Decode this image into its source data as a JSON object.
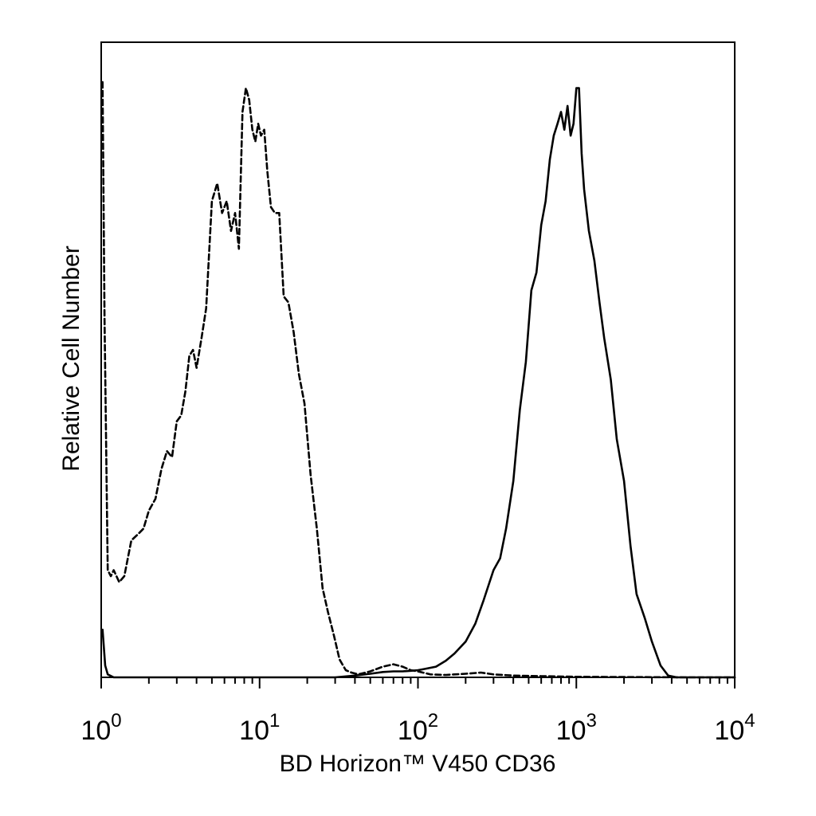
{
  "chart_data": {
    "type": "line",
    "title": "",
    "xlabel": "BD Horizon™ V450 CD36",
    "ylabel": "Relative Cell Number",
    "x_scale": "log",
    "xlim": [
      1,
      10000
    ],
    "ylim": [
      0,
      100
    ],
    "grid": false,
    "legend": "none",
    "x_ticks": [
      {
        "value": 1,
        "base": "10",
        "exp": "0"
      },
      {
        "value": 10,
        "base": "10",
        "exp": "1"
      },
      {
        "value": 100,
        "base": "10",
        "exp": "2"
      },
      {
        "value": 1000,
        "base": "10",
        "exp": "3"
      },
      {
        "value": 10000,
        "base": "10",
        "exp": "4"
      }
    ],
    "series": [
      {
        "style": "dashed",
        "color": "#000000",
        "x": [
          1.02,
          1.05,
          1.1,
          1.15,
          1.2,
          1.3,
          1.4,
          1.55,
          1.7,
          1.85,
          2.0,
          2.2,
          2.4,
          2.6,
          2.8,
          3.0,
          3.2,
          3.4,
          3.6,
          3.8,
          4.0,
          4.3,
          4.6,
          5.0,
          5.4,
          5.8,
          6.2,
          6.6,
          7.0,
          7.4,
          7.8,
          8.2,
          8.6,
          9.0,
          9.4,
          9.8,
          10.2,
          10.7,
          11.2,
          11.8,
          12.5,
          13.3,
          14.2,
          15.2,
          16.4,
          17.7,
          19.2,
          21.0,
          23.0,
          25.0,
          27.0,
          29.5,
          32.0,
          35.0,
          38.0,
          42.0,
          50.0,
          60.0,
          70.0,
          80.0,
          90.0,
          100.0,
          120.0,
          150.0,
          200.0,
          250.0,
          300.0,
          400.0,
          600.0,
          1000.0,
          2000.0,
          5000.0,
          10000.0
        ],
        "y": [
          100,
          60,
          18,
          17,
          18,
          16,
          17,
          23,
          24,
          25,
          28,
          30,
          35,
          38,
          37,
          43,
          44,
          48,
          54,
          55,
          52,
          57,
          62,
          80,
          83,
          78,
          80,
          75,
          78,
          72,
          95,
          99,
          97,
          92,
          90,
          93,
          91,
          92,
          85,
          79,
          78,
          78,
          64,
          63,
          58,
          51,
          46,
          34,
          25,
          15,
          11,
          7,
          3,
          1.2,
          0.8,
          0.5,
          1.0,
          1.8,
          2.2,
          1.8,
          1.2,
          1.0,
          0.5,
          0.4,
          0.6,
          0.8,
          0.5,
          0.3,
          0.2,
          0.1,
          0.05,
          0,
          0
        ]
      },
      {
        "style": "solid",
        "color": "#000000",
        "x": [
          1.02,
          1.06,
          1.1,
          1.2,
          1.5,
          2.0,
          5.0,
          10.0,
          20.0,
          30.0,
          40.0,
          50.0,
          60.0,
          70.0,
          80.0,
          90.0,
          100.0,
          110.0,
          120.0,
          130.0,
          150.0,
          170.0,
          200.0,
          230.0,
          260.0,
          300.0,
          330.0,
          360.0,
          400.0,
          440.0,
          480.0,
          520.0,
          560.0,
          600.0,
          640.0,
          680.0,
          720.0,
          760.0,
          800.0,
          840.0,
          880.0,
          920.0,
          960.0,
          1000.0,
          1040.0,
          1080.0,
          1120.0,
          1200.0,
          1300.0,
          1400.0,
          1500.0,
          1650.0,
          1800.0,
          2000.0,
          2200.0,
          2400.0,
          2700.0,
          3000.0,
          3400.0,
          3800.0,
          4300.0,
          5000.0,
          7000.0,
          10000.0
        ],
        "y": [
          8,
          2,
          0.5,
          0,
          0,
          0,
          0,
          0,
          0,
          0,
          0.3,
          0.6,
          0.9,
          1.0,
          1.0,
          1.1,
          1.2,
          1.4,
          1.6,
          1.8,
          2.8,
          4.0,
          6.0,
          9.0,
          13,
          18,
          20,
          25,
          33,
          45,
          53,
          65,
          68,
          76,
          80,
          87,
          91,
          93,
          95,
          92,
          96,
          91,
          93,
          99,
          99,
          88,
          82,
          75,
          70,
          63,
          57,
          50,
          40,
          33,
          22,
          14,
          10,
          6,
          2,
          0.3,
          0,
          0,
          0,
          0
        ]
      }
    ]
  }
}
